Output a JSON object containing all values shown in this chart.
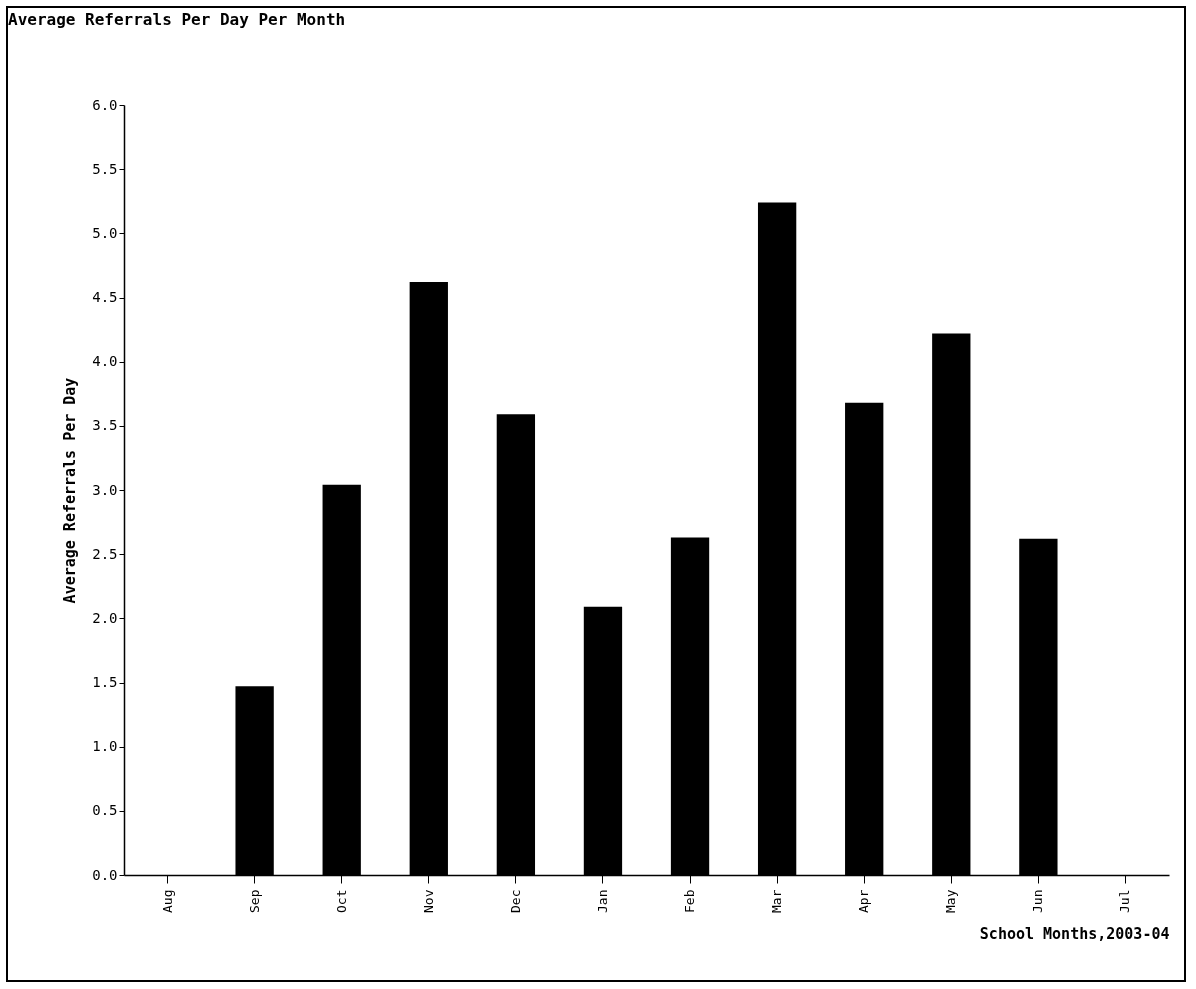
{
  "chart_data": {
    "type": "bar",
    "title": "Average Referrals Per Day Per Month",
    "xlabel": "School Months,2003-04",
    "ylabel": "Average Referrals Per Day",
    "categories": [
      "Aug",
      "Sep",
      "Oct",
      "Nov",
      "Dec",
      "Jan",
      "Feb",
      "Mar",
      "Apr",
      "May",
      "Jun",
      "Jul"
    ],
    "values": [
      null,
      1.47,
      3.04,
      4.62,
      3.59,
      2.09,
      2.63,
      5.24,
      3.68,
      4.22,
      2.62,
      null
    ],
    "color": "#000000",
    "ylim": [
      0,
      6
    ],
    "yticks": [
      {
        "value": 0,
        "label": "0.0"
      },
      0.5,
      {
        "value": 1,
        "label": "1.0"
      },
      1.5,
      {
        "value": 2,
        "label": "2.0"
      },
      2.5,
      {
        "value": 3,
        "label": "3.0"
      },
      3.5,
      {
        "value": 4,
        "label": "4.0"
      },
      4.5,
      {
        "value": 5,
        "label": "5.0"
      },
      5.5,
      {
        "value": 6,
        "label": "6.0"
      }
    ]
  }
}
